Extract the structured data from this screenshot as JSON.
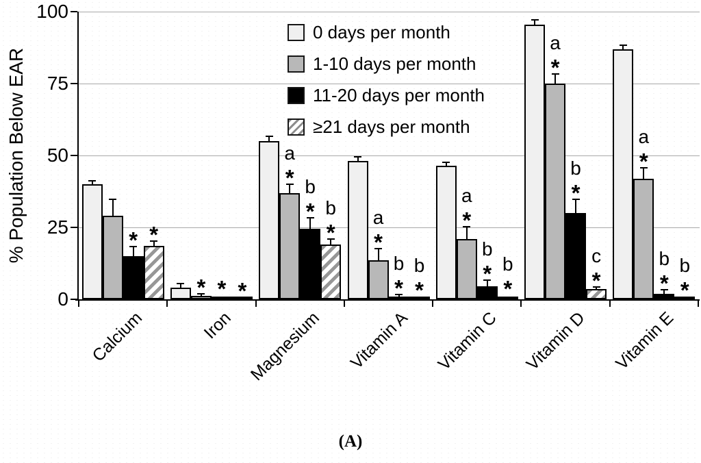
{
  "caption": "(A)",
  "chart_data": {
    "type": "bar",
    "title": "",
    "xlabel": "",
    "ylabel": "% Population Below EAR",
    "ylim": [
      0,
      100
    ],
    "yticks": [
      0,
      25,
      50,
      75,
      100
    ],
    "grid": true,
    "legend_position": "top-center-inside",
    "error_bars": "upper",
    "categories": [
      "Calcium",
      "Iron",
      "Magnesium",
      "Vitamin A",
      "Vitamin C",
      "Vitamin D",
      "Vitamin E"
    ],
    "series": [
      {
        "name": "0 days per month",
        "style": "light",
        "color": "#f0f0f0",
        "values": [
          40,
          4,
          55,
          48,
          46.5,
          95.5,
          87
        ],
        "errors": [
          1,
          1.2,
          1.4,
          1.2,
          1,
          1.5,
          1.2
        ],
        "letters": [
          "",
          "",
          "",
          "",
          "",
          "",
          ""
        ],
        "stars": [
          false,
          false,
          false,
          false,
          false,
          false,
          false
        ]
      },
      {
        "name": "1-10 days per month",
        "style": "gray",
        "color": "#b8b8b8",
        "values": [
          29,
          1.2,
          37,
          13.5,
          21,
          75,
          42
        ],
        "errors": [
          5.5,
          0.5,
          2.8,
          4,
          4,
          3,
          3.5
        ],
        "letters": [
          "",
          "",
          "a",
          "a",
          "a",
          "a",
          "a"
        ],
        "stars": [
          false,
          true,
          true,
          true,
          true,
          true,
          true
        ]
      },
      {
        "name": "11-20 days per month",
        "style": "black",
        "color": "#000000",
        "values": [
          15,
          0.8,
          24.5,
          1,
          4.5,
          30,
          2
        ],
        "errors": [
          3,
          0.3,
          3.5,
          0.5,
          2,
          4.5,
          1
        ],
        "letters": [
          "",
          "",
          "b",
          "b",
          "b",
          "b",
          "b"
        ],
        "stars": [
          true,
          true,
          true,
          true,
          true,
          true,
          true
        ]
      },
      {
        "name": "≥21 days per month",
        "style": "hatch",
        "color": "#979797",
        "values": [
          18.5,
          0.3,
          19,
          0.5,
          0.8,
          3.5,
          0.5
        ],
        "errors": [
          1.5,
          0.2,
          1.8,
          0.3,
          0.4,
          0.5,
          0.2
        ],
        "letters": [
          "",
          "",
          "b",
          "b",
          "b",
          "c",
          "b"
        ],
        "stars": [
          true,
          true,
          true,
          true,
          true,
          true,
          true
        ]
      }
    ]
  }
}
